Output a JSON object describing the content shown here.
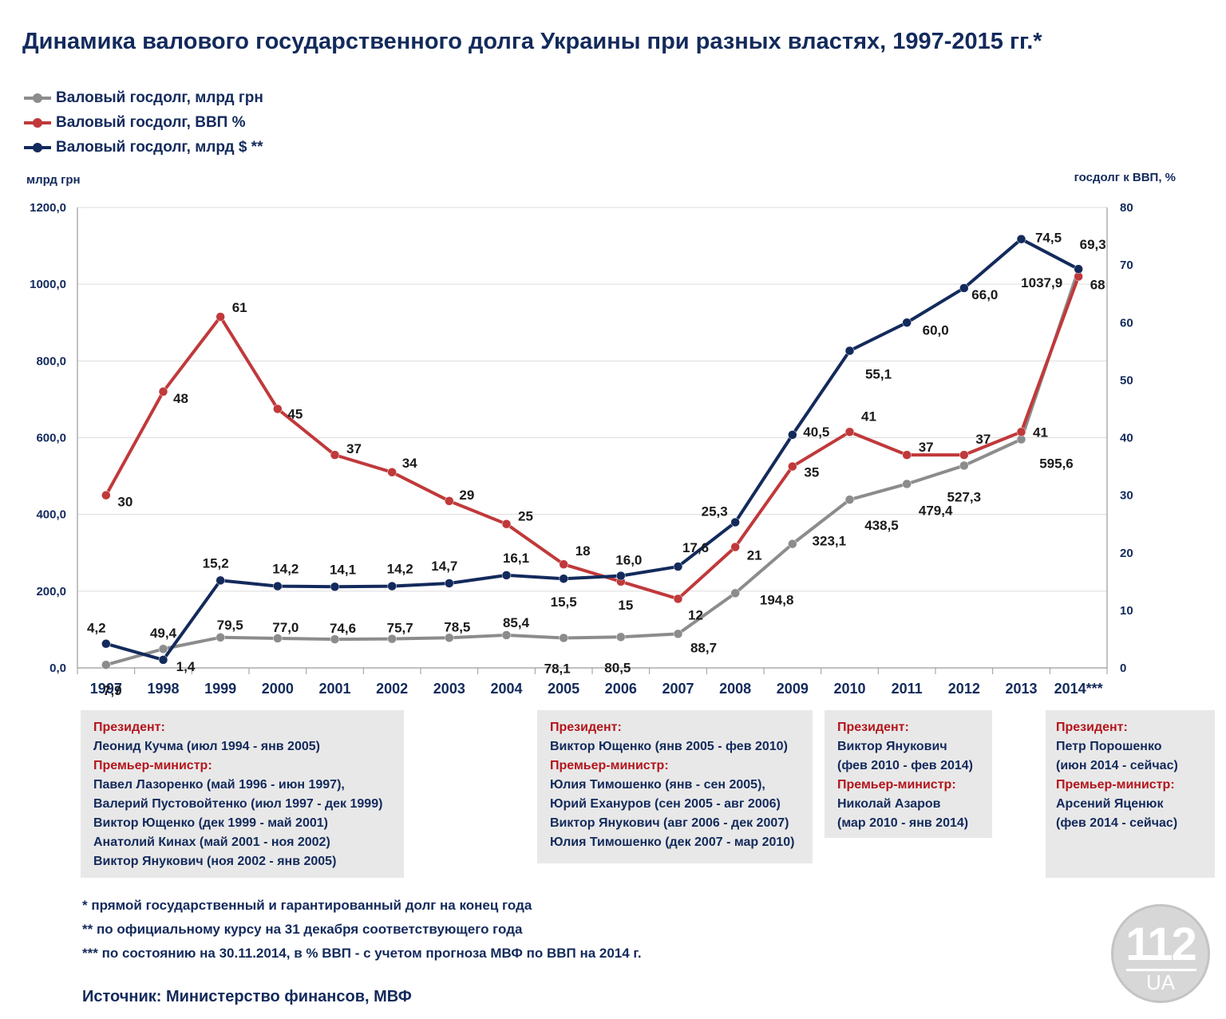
{
  "title": "Динамика валового государственного долга Украины при разных властях, 1997-2015 гг.*",
  "legend": [
    {
      "label": "Валовый госдолг, млрд грн",
      "color": "#8c8c8c"
    },
    {
      "label": "Валовый госдолг, ВВП %",
      "color": "#c0393b"
    },
    {
      "label": "Валовый госдолг, млрд $ **",
      "color": "#132a5c"
    }
  ],
  "chart_data": {
    "type": "line",
    "x": [
      "1997",
      "1998",
      "1999",
      "2000",
      "2001",
      "2002",
      "2003",
      "2004",
      "2005",
      "2006",
      "2007",
      "2008",
      "2009",
      "2010",
      "2011",
      "2012",
      "2013",
      "2014***"
    ],
    "left_axis": {
      "label": "млрд грн",
      "min": 0,
      "max": 1200,
      "ticks": [
        "0,0",
        "200,0",
        "400,0",
        "600,0",
        "800,0",
        "1000,0",
        "1200,0"
      ]
    },
    "right_axis": {
      "label": "госдолг к ВВП, %",
      "min": 0,
      "max": 80,
      "ticks": [
        "0",
        "10",
        "20",
        "30",
        "40",
        "50",
        "60",
        "70",
        "80"
      ]
    },
    "grid": "horizontal",
    "legend_position": "top-left",
    "series": [
      {
        "name": "Валовый госдолг, млрд грн",
        "axis": "left",
        "color": "#8c8c8c",
        "values": [
          7.9,
          49.4,
          79.5,
          77.0,
          74.6,
          75.7,
          78.5,
          85.4,
          78.1,
          80.5,
          88.7,
          194.8,
          323.1,
          438.5,
          479.4,
          527.3,
          595.6,
          1037.9
        ],
        "labels": [
          "7,9",
          "49,4",
          "79,5",
          "77,0",
          "74,6",
          "75,7",
          "78,5",
          "85,4",
          "78,1",
          "80,5",
          "88,7",
          "194,8",
          "323,1",
          "438,5",
          "479,4",
          "527,3",
          "595,6",
          "1037,9"
        ]
      },
      {
        "name": "Валовый госдолг, ВВП %",
        "axis": "right",
        "color": "#c0393b",
        "values": [
          30,
          48,
          61,
          45,
          37,
          34,
          29,
          25,
          18,
          15,
          12,
          21,
          35,
          41,
          37,
          37,
          41,
          68
        ],
        "labels": [
          "30",
          "48",
          "61",
          "45",
          "37",
          "34",
          "29",
          "25",
          "18",
          "15",
          "12",
          "21",
          "35",
          "41",
          "37",
          "37",
          "41",
          "68"
        ]
      },
      {
        "name": "Валовый госдолг, млрд $ **",
        "axis": "right",
        "color": "#132a5c",
        "values": [
          4.2,
          1.4,
          15.2,
          14.2,
          14.1,
          14.2,
          14.7,
          16.1,
          15.5,
          16.0,
          17.6,
          25.3,
          40.5,
          55.1,
          60.0,
          66.0,
          74.5,
          69.3
        ],
        "labels": [
          "4,2",
          "1,4",
          "15,2",
          "14,2",
          "14,1",
          "14,2",
          "14,7",
          "16,1",
          "15,5",
          "16,0",
          "17,6",
          "25,3",
          "40,5",
          "55,1",
          "60,0",
          "66,0",
          "74,5",
          "69,3"
        ]
      }
    ]
  },
  "governments": [
    {
      "president_role": "Президент:",
      "president": [
        "Леонид Кучма (июл 1994 - янв 2005)"
      ],
      "pm_role": "Премьер-министр:",
      "pms": [
        "Павел Лазоренко (май 1996 - июн 1997),",
        "Валерий Пустовойтенко (июл 1997 - дек 1999)",
        "Виктор Ющенко (дек 1999 - май 2001)",
        "Анатолий Кинах (май 2001 - ноя 2002)",
        "Виктор Янукович (ноя 2002 - янв 2005)"
      ]
    },
    {
      "president_role": "Президент:",
      "president": [
        "Виктор Ющенко (янв 2005 - фев 2010)"
      ],
      "pm_role": "Премьер-министр:",
      "pms": [
        "Юлия Тимошенко (янв - сен 2005),",
        "Юрий Ехануров (сен 2005 - авг 2006)",
        "Виктор Янукович (авг 2006 - дек 2007)",
        "Юлия Тимошенко (дек 2007 - мар 2010)"
      ]
    },
    {
      "president_role": "Президент:",
      "president": [
        "Виктор Янукович",
        "(фев 2010 - фев 2014)"
      ],
      "pm_role": "Премьер-министр:",
      "pms": [
        "Николай Азаров",
        "(мар 2010 - янв 2014)"
      ]
    },
    {
      "president_role": "Президент:",
      "president": [
        "Петр Порошенко",
        "(июн 2014 - сейчас)"
      ],
      "pm_role": "Премьер-министр:",
      "pms": [
        "Арсений Яценюк",
        "(фев 2014 - сейчас)"
      ]
    }
  ],
  "notes": [
    "* прямой государственный и гарантированный долг на конец года",
    "** по официальному курсу на 31 декабря соответствующего года",
    "*** по состоянию на 30.11.2014, в % ВВП - с учетом прогноза МВФ по ВВП на 2014 г."
  ],
  "source": "Источник: Министерство финансов, МВФ",
  "logo": {
    "number": "112",
    "suffix": "UA"
  }
}
